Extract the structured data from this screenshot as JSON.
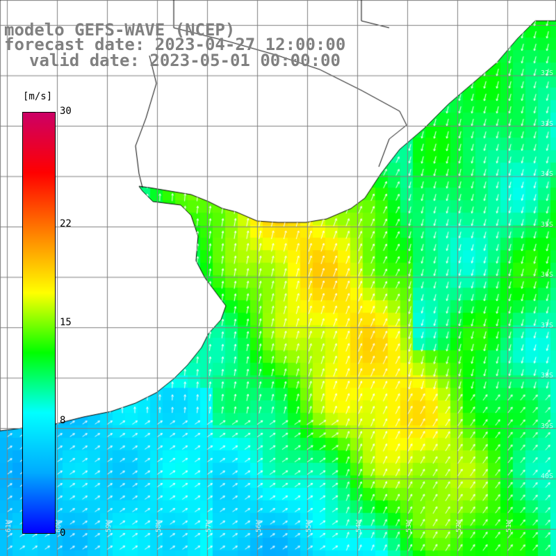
{
  "title": {
    "line1": "modelo GEFS-WAVE (NCEP)",
    "line2": "forecast date: 2023-04-27 12:00:00",
    "line3": "valid date: 2023-05-01 00:00:00"
  },
  "colorbar": {
    "unit": "[m/s]",
    "ticks": [
      "30",
      "22",
      "15",
      "8",
      "0"
    ],
    "tick_values": [
      30,
      22,
      15,
      8,
      0
    ],
    "range": [
      0,
      30
    ],
    "colors": [
      "#0000ff",
      "#00aaff",
      "#00ffff",
      "#00ff00",
      "#ffff00",
      "#ff8000",
      "#ff0000",
      "#cc0066"
    ]
  },
  "map": {
    "variable": "wind speed and direction",
    "land_color": "#ffffff",
    "coastline_color": "#000000",
    "grid_color": "#808080",
    "arrow_color": "#ffffff",
    "lat_labels": [
      "32S",
      "33S",
      "34S",
      "35S",
      "36S",
      "37S",
      "38S",
      "39S",
      "40S"
    ],
    "lon_labels": [
      "61W",
      "60W",
      "59W",
      "58W",
      "57W",
      "56W",
      "55W",
      "54W",
      "53W",
      "52W",
      "51W"
    ]
  }
}
